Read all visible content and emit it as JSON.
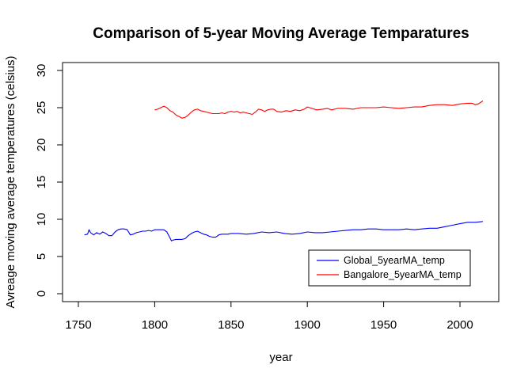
{
  "chart_data": {
    "type": "line",
    "title": "Comparison of 5-year Moving Average Temparatures",
    "xlabel": "year",
    "ylabel": "Avreage moving average temperatures (celsius)",
    "xlim": [
      1740,
      2020
    ],
    "ylim": [
      0,
      30
    ],
    "xticks": [
      1750,
      1800,
      1850,
      1900,
      1950,
      2000
    ],
    "yticks": [
      0,
      5,
      10,
      15,
      20,
      25,
      30
    ],
    "grid": false,
    "legend_position": "bottom-right",
    "series": [
      {
        "name": "Global_5yearMA_temp",
        "color": "#0000ff",
        "x": [
          1754,
          1756,
          1757,
          1758,
          1760,
          1762,
          1764,
          1766,
          1768,
          1770,
          1772,
          1774,
          1776,
          1778,
          1780,
          1782,
          1784,
          1786,
          1788,
          1790,
          1792,
          1794,
          1796,
          1798,
          1800,
          1802,
          1804,
          1806,
          1808,
          1810,
          1811,
          1812,
          1814,
          1816,
          1818,
          1820,
          1822,
          1824,
          1826,
          1828,
          1830,
          1832,
          1834,
          1836,
          1838,
          1840,
          1842,
          1844,
          1846,
          1848,
          1850,
          1855,
          1860,
          1865,
          1870,
          1875,
          1880,
          1885,
          1890,
          1895,
          1900,
          1905,
          1910,
          1915,
          1920,
          1925,
          1930,
          1935,
          1940,
          1945,
          1950,
          1955,
          1960,
          1965,
          1970,
          1975,
          1980,
          1985,
          1990,
          1995,
          2000,
          2005,
          2010,
          2015
        ],
        "y": [
          7.9,
          8.0,
          8.6,
          8.2,
          7.9,
          8.2,
          8.0,
          8.3,
          8.1,
          7.8,
          7.8,
          8.3,
          8.6,
          8.7,
          8.7,
          8.6,
          7.9,
          8.0,
          8.2,
          8.3,
          8.4,
          8.4,
          8.5,
          8.4,
          8.6,
          8.6,
          8.6,
          8.6,
          8.3,
          7.5,
          7.1,
          7.2,
          7.3,
          7.3,
          7.3,
          7.4,
          7.8,
          8.1,
          8.3,
          8.4,
          8.2,
          8.0,
          7.9,
          7.7,
          7.6,
          7.6,
          7.9,
          8.0,
          8.0,
          8.0,
          8.1,
          8.1,
          8.0,
          8.1,
          8.3,
          8.2,
          8.3,
          8.1,
          8.0,
          8.1,
          8.3,
          8.2,
          8.2,
          8.3,
          8.4,
          8.5,
          8.6,
          8.6,
          8.7,
          8.7,
          8.6,
          8.6,
          8.6,
          8.7,
          8.6,
          8.7,
          8.8,
          8.8,
          9.0,
          9.2,
          9.4,
          9.6,
          9.6,
          9.7
        ]
      },
      {
        "name": "Bangalore_5yearMA_temp",
        "color": "#ff0000",
        "x": [
          1800,
          1802,
          1804,
          1806,
          1808,
          1810,
          1812,
          1814,
          1816,
          1818,
          1820,
          1822,
          1824,
          1826,
          1828,
          1830,
          1832,
          1834,
          1836,
          1838,
          1840,
          1842,
          1844,
          1846,
          1848,
          1850,
          1852,
          1854,
          1856,
          1858,
          1860,
          1862,
          1864,
          1866,
          1868,
          1870,
          1872,
          1874,
          1876,
          1878,
          1880,
          1883,
          1886,
          1889,
          1892,
          1895,
          1898,
          1900,
          1903,
          1906,
          1910,
          1913,
          1916,
          1920,
          1925,
          1930,
          1935,
          1940,
          1945,
          1950,
          1955,
          1960,
          1965,
          1970,
          1975,
          1980,
          1985,
          1990,
          1995,
          2000,
          2005,
          2008,
          2010,
          2012,
          2015
        ],
        "y": [
          24.7,
          24.8,
          25.0,
          25.2,
          25.0,
          24.6,
          24.4,
          24.0,
          23.8,
          23.6,
          23.7,
          24.0,
          24.4,
          24.7,
          24.8,
          24.6,
          24.5,
          24.4,
          24.3,
          24.2,
          24.2,
          24.2,
          24.3,
          24.2,
          24.4,
          24.5,
          24.4,
          24.5,
          24.3,
          24.4,
          24.3,
          24.2,
          24.1,
          24.4,
          24.8,
          24.7,
          24.5,
          24.7,
          24.8,
          24.8,
          24.5,
          24.4,
          24.6,
          24.5,
          24.7,
          24.6,
          24.8,
          25.1,
          24.9,
          24.7,
          24.8,
          24.9,
          24.7,
          24.9,
          24.9,
          24.8,
          25.0,
          25.0,
          25.0,
          25.1,
          25.0,
          24.9,
          25.0,
          25.1,
          25.1,
          25.3,
          25.4,
          25.4,
          25.3,
          25.5,
          25.6,
          25.6,
          25.4,
          25.5,
          25.9
        ]
      }
    ]
  }
}
